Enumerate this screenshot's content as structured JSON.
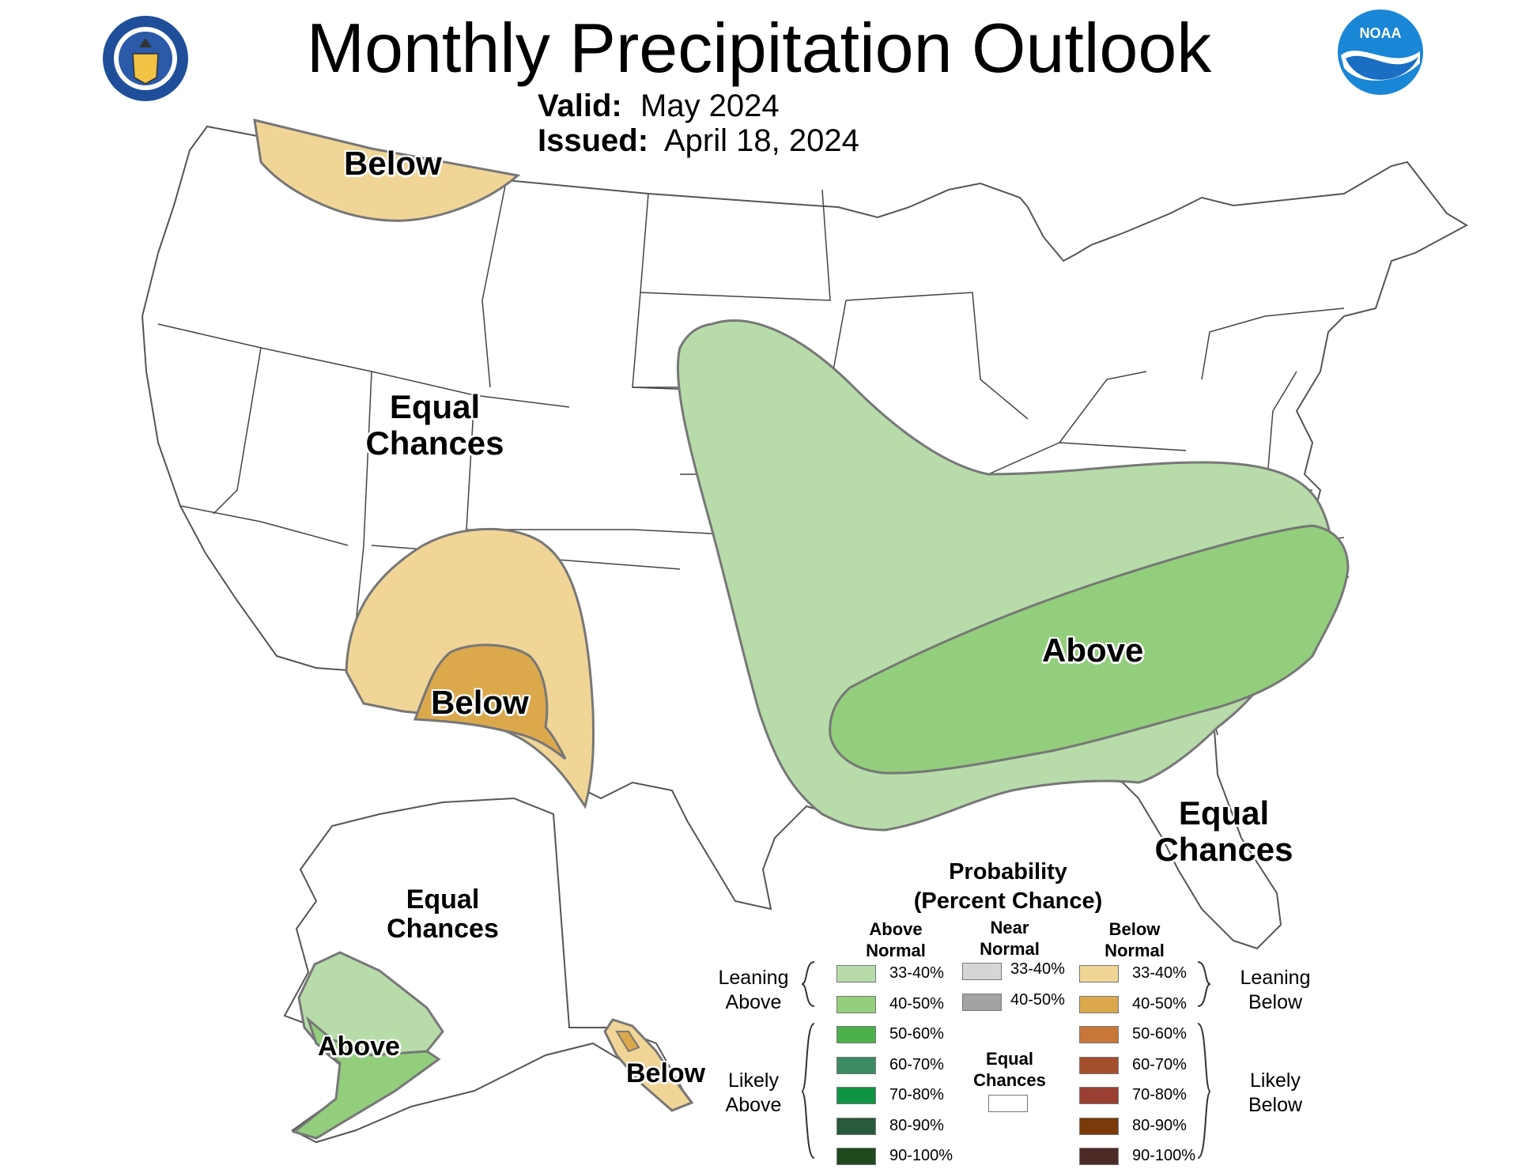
{
  "header": {
    "title": "Monthly Precipitation Outlook",
    "valid_label": "Valid:",
    "valid_value": "May 2024",
    "issued_label": "Issued:",
    "issued_value": "April 18, 2024",
    "noaa_text": "NOAA"
  },
  "map_labels": {
    "below_nw": "Below",
    "equal_west_1": "Equal",
    "equal_west_2": "Chances",
    "below_sw": "Below",
    "above_east": "Above",
    "equal_se_1": "Equal",
    "equal_se_2": "Chances",
    "equal_ak_1": "Equal",
    "equal_ak_2": "Chances",
    "above_ak": "Above",
    "below_ak": "Below"
  },
  "legend": {
    "title_1": "Probability",
    "title_2": "(Percent Chance)",
    "above_head_1": "Above",
    "above_head_2": "Normal",
    "near_head_1": "Near",
    "near_head_2": "Normal",
    "below_head_1": "Below",
    "below_head_2": "Normal",
    "leaning_above_1": "Leaning",
    "leaning_above_2": "Above",
    "leaning_below_1": "Leaning",
    "leaning_below_2": "Below",
    "likely_above_1": "Likely",
    "likely_above_2": "Above",
    "likely_below_1": "Likely",
    "likely_below_2": "Below",
    "equal_1": "Equal",
    "equal_2": "Chances",
    "above": [
      {
        "label": "33-40%",
        "color": "#b7dcaa"
      },
      {
        "label": "40-50%",
        "color": "#93ce7c"
      },
      {
        "label": "50-60%",
        "color": "#4cb04c"
      },
      {
        "label": "60-70%",
        "color": "#3a8a64"
      },
      {
        "label": "70-80%",
        "color": "#0f9444"
      },
      {
        "label": "80-90%",
        "color": "#285a3c"
      },
      {
        "label": "90-100%",
        "color": "#1e4a1e"
      }
    ],
    "near": [
      {
        "label": "33-40%",
        "color": "#d6d6d6"
      },
      {
        "label": "40-50%",
        "color": "#a3a3a3"
      }
    ],
    "below": [
      {
        "label": "33-40%",
        "color": "#f0d596"
      },
      {
        "label": "40-50%",
        "color": "#dba84c"
      },
      {
        "label": "50-60%",
        "color": "#c8763a"
      },
      {
        "label": "60-70%",
        "color": "#a4502d"
      },
      {
        "label": "70-80%",
        "color": "#9a3f32"
      },
      {
        "label": "80-90%",
        "color": "#7a3a0a"
      },
      {
        "label": "90-100%",
        "color": "#4e2a26"
      }
    ]
  }
}
